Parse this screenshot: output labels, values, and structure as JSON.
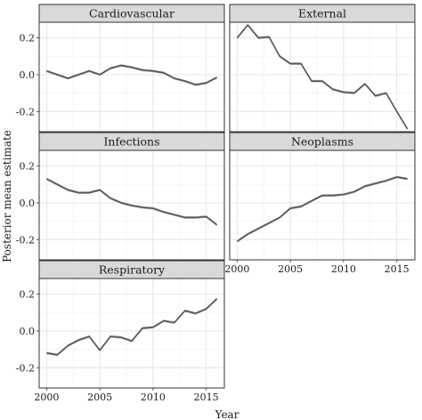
{
  "chart_data": {
    "type": "line",
    "xlabel": "Year",
    "ylabel": "Posterior mean estimate",
    "xlim": [
      1999.3,
      2016.7
    ],
    "ylim": [
      -0.31,
      0.285
    ],
    "xticks": [
      2000,
      2005,
      2010,
      2015
    ],
    "yticks": [
      -0.2,
      0.0,
      0.2
    ],
    "ytick_labels": [
      "-0.2",
      "0.0",
      "0.2"
    ],
    "grid": true,
    "shared_axes": true,
    "layout": "facet-wrap-2-columns",
    "x": [
      2000,
      2001,
      2002,
      2003,
      2004,
      2005,
      2006,
      2007,
      2008,
      2009,
      2010,
      2011,
      2012,
      2013,
      2014,
      2015,
      2016
    ],
    "series": [
      {
        "name": "Cardiovascular",
        "values": [
          0.02,
          0.0,
          -0.02,
          0.0,
          0.02,
          0.0,
          0.035,
          0.05,
          0.04,
          0.025,
          0.02,
          0.01,
          -0.02,
          -0.035,
          -0.055,
          -0.045,
          -0.015
        ]
      },
      {
        "name": "External",
        "values": [
          0.2,
          0.27,
          0.2,
          0.205,
          0.1,
          0.06,
          0.06,
          -0.035,
          -0.035,
          -0.08,
          -0.095,
          -0.1,
          -0.05,
          -0.115,
          -0.1,
          -0.2,
          -0.295
        ]
      },
      {
        "name": "Infections",
        "values": [
          0.13,
          0.1,
          0.07,
          0.055,
          0.055,
          0.07,
          0.025,
          0.0,
          -0.015,
          -0.025,
          -0.03,
          -0.05,
          -0.065,
          -0.08,
          -0.08,
          -0.075,
          -0.12
        ]
      },
      {
        "name": "Neoplasms",
        "values": [
          -0.21,
          -0.17,
          -0.14,
          -0.11,
          -0.08,
          -0.03,
          -0.02,
          0.01,
          0.04,
          0.04,
          0.045,
          0.06,
          0.09,
          0.105,
          0.12,
          0.14,
          0.13
        ]
      },
      {
        "name": "Respiratory",
        "values": [
          -0.12,
          -0.13,
          -0.08,
          -0.05,
          -0.03,
          -0.105,
          -0.03,
          -0.035,
          -0.055,
          0.015,
          0.02,
          0.055,
          0.045,
          0.11,
          0.095,
          0.12,
          0.175
        ]
      }
    ]
  }
}
